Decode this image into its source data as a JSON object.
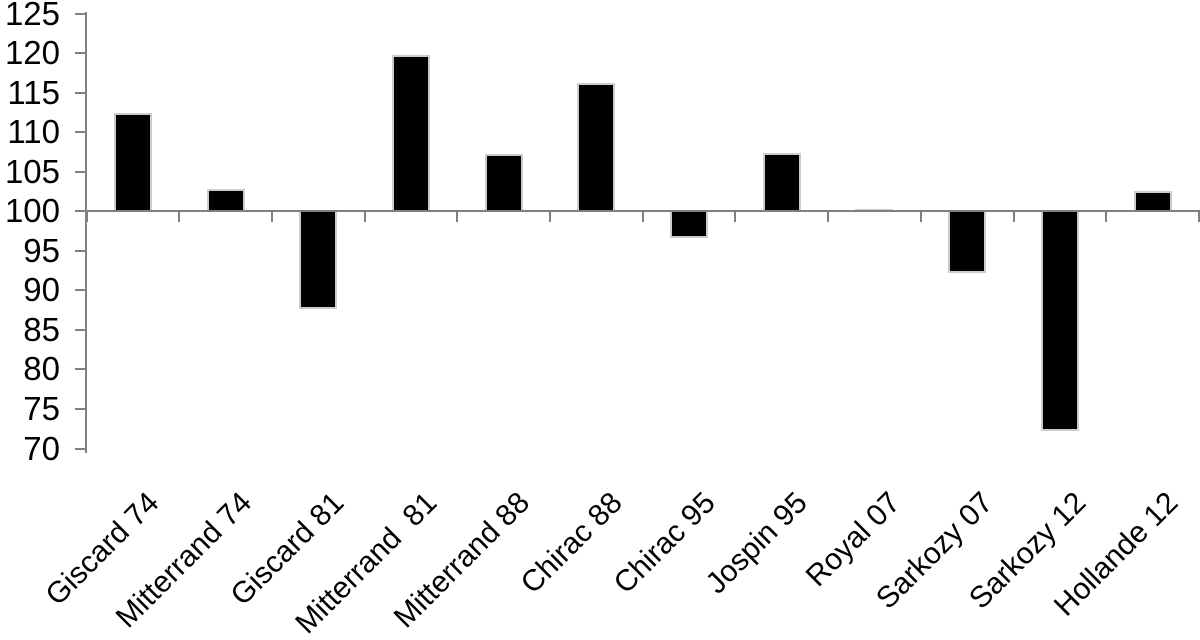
{
  "chart_data": {
    "type": "bar",
    "title": "",
    "xlabel": "",
    "ylabel": "",
    "categories": [
      "Giscard 74",
      "Mitterrand 74",
      "Giscard 81",
      "Mitterrand  81",
      "Mitterrand 88",
      "Chirac 88",
      "Chirac 95",
      "Jospin 95",
      "Royal 07",
      "Sarkozy 07",
      "Sarkozy 12",
      "Hollande 12"
    ],
    "values": [
      112.4,
      102.8,
      87.6,
      119.7,
      107.2,
      116.2,
      96.6,
      107.3,
      100.3,
      92.2,
      72.2,
      102.5
    ],
    "baseline": 100,
    "ylim": [
      70,
      125
    ],
    "ytick_step": 5,
    "yticks": [
      125,
      120,
      115,
      110,
      105,
      100,
      95,
      90,
      85,
      80,
      75,
      70
    ],
    "grid": false,
    "legend_position": "none",
    "x_label_rotation_deg": 45,
    "colors": {
      "bar_fill": "#000000",
      "bar_border": "#cccccc",
      "axis": "#808080",
      "text": "#000000",
      "background": "#ffffff"
    }
  }
}
